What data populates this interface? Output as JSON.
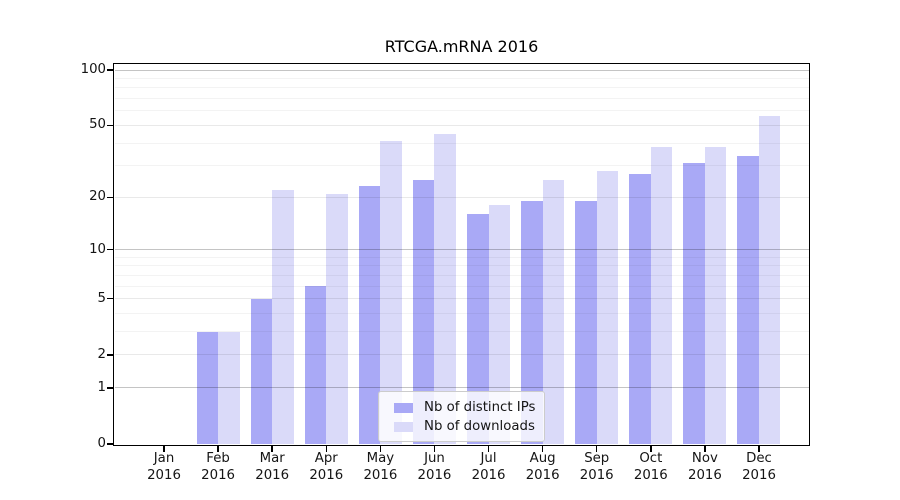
{
  "chart_data": {
    "type": "bar",
    "title": "RTCGA.mRNA 2016",
    "categories": [
      "Jan 2016",
      "Feb 2016",
      "Mar 2016",
      "Apr 2016",
      "May 2016",
      "Jun 2016",
      "Jul 2016",
      "Aug 2016",
      "Sep 2016",
      "Oct 2016",
      "Nov 2016",
      "Dec 2016"
    ],
    "x_months": [
      "Jan",
      "Feb",
      "Mar",
      "Apr",
      "May",
      "Jun",
      "Jul",
      "Aug",
      "Sep",
      "Oct",
      "Nov",
      "Dec"
    ],
    "x_year": "2016",
    "series": [
      {
        "name": "Nb of distinct IPs",
        "color": "#a9a9f6",
        "values": [
          0,
          3,
          5,
          6,
          23,
          25,
          16,
          19,
          19,
          27,
          31,
          34
        ]
      },
      {
        "name": "Nb of downloads",
        "color": "#dadaf9",
        "values": [
          0,
          3,
          22,
          21,
          41,
          45,
          18,
          25,
          28,
          38,
          38,
          56
        ]
      }
    ],
    "yscale": "log1p",
    "ylim": [
      0,
      108
    ],
    "y_ticks": [
      100,
      50,
      20,
      10,
      5,
      2,
      1,
      0
    ],
    "y_tick_labels": [
      "100",
      "50",
      "20",
      "10",
      "5",
      "2",
      "1",
      "0"
    ],
    "grid": {
      "on": true,
      "minor_lines": [
        3,
        4,
        6,
        7,
        8,
        9,
        30,
        40,
        60,
        70,
        80,
        90
      ],
      "major_lines": [
        2,
        5,
        20,
        50
      ],
      "decade_lines": [
        1,
        10,
        100
      ]
    },
    "legend": {
      "position": "bottom-center",
      "entries": [
        "Nb of distinct IPs",
        "Nb of downloads"
      ]
    }
  },
  "colors": {
    "bar_distinct_ips": "#a9a9f6",
    "bar_downloads": "#dadaf9",
    "grid_minor": "#f3f3f3",
    "grid_major": "#eaeaea",
    "grid_decade": "#c4c4c4",
    "axis": "#000000",
    "text": "#151515",
    "legend_border": "#cccccc",
    "background": "#ffffff"
  }
}
